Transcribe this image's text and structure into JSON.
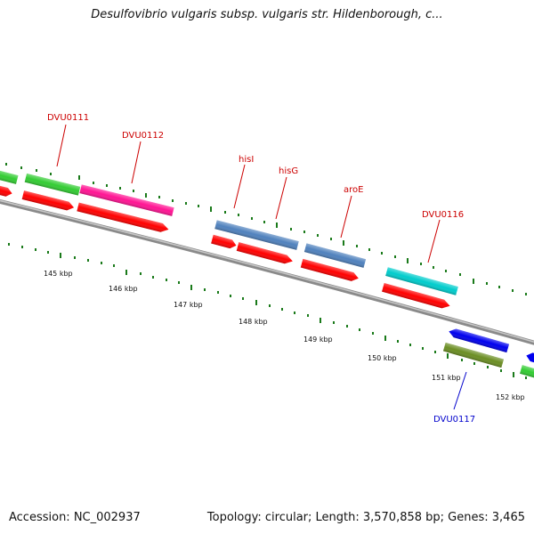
{
  "title": "Desulfovibrio vulgaris subsp. vulgaris str. Hildenborough, c...",
  "footer": {
    "accession": "Accession: NC_002937",
    "topology": "Topology: circular; Length: 3,570,858 bp; Genes: 3,465"
  },
  "ticks": [
    "145 kbp",
    "146 kbp",
    "147 kbp",
    "148 kbp",
    "149 kbp",
    "150 kbp",
    "151 kbp",
    "152 kbp"
  ],
  "gene_labels": [
    {
      "name": "DVU0111",
      "color": "#cc0000"
    },
    {
      "name": "DVU0112",
      "color": "#cc0000"
    },
    {
      "name": "hisI",
      "color": "#cc0000"
    },
    {
      "name": "hisG",
      "color": "#cc0000"
    },
    {
      "name": "aroE",
      "color": "#cc0000"
    },
    {
      "name": "DVU0116",
      "color": "#cc0000"
    },
    {
      "name": "DVU0117",
      "color": "#0000cc"
    }
  ],
  "colors": {
    "backbone": "#8a8a8a",
    "cds_red": "#ff0000",
    "green_feature": "#33cc33",
    "magenta_feature": "#ff1493",
    "steelblue_feature": "#4f81bd",
    "cyan_feature": "#00cccc",
    "blue_feature": "#0000ee",
    "olive_feature": "#6b8e23",
    "tick_green": "#1a7a1a"
  }
}
